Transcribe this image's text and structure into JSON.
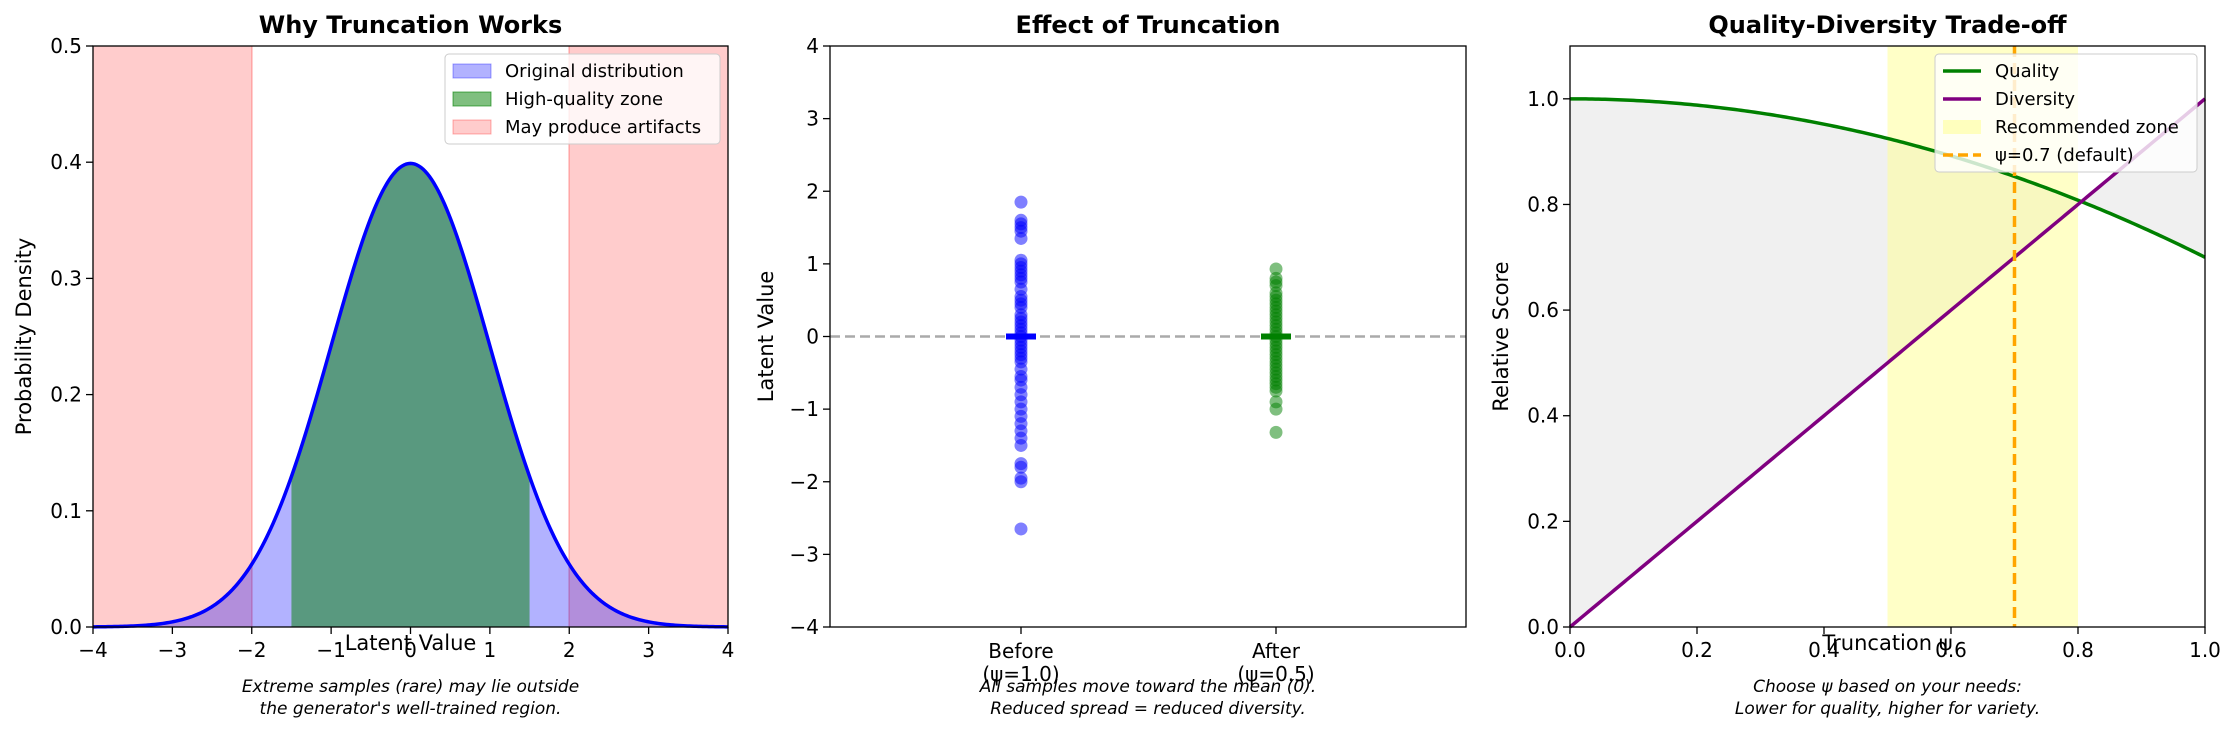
{
  "chart_data": [
    {
      "type": "area",
      "title": "Why Truncation Works",
      "xlabel": "Latent Value",
      "ylabel": "Probability Density",
      "xlim": [
        -4,
        4
      ],
      "ylim": [
        0,
        0.5
      ],
      "xticks": [
        "−4",
        "−3",
        "−2",
        "−1",
        "0",
        "1",
        "2",
        "3",
        "4"
      ],
      "yticks": [
        "0.0",
        "0.1",
        "0.2",
        "0.3",
        "0.4",
        "0.5"
      ],
      "series": [
        {
          "name": "Original distribution",
          "kind": "area",
          "color": "#0000ff",
          "x_range": [
            -4,
            4
          ],
          "function": "standard normal pdf"
        },
        {
          "name": "High-quality zone",
          "kind": "area",
          "color": "#008000",
          "x_range": [
            -1.5,
            1.5
          ]
        },
        {
          "name": "May produce artifacts",
          "kind": "band",
          "color": "#ff0000",
          "x_ranges": [
            [
              -4,
              -2
            ],
            [
              2,
              4
            ]
          ]
        }
      ],
      "legend_position": "top-right",
      "caption": [
        "Extreme samples (rare) may lie outside",
        "the generator's well-trained region."
      ]
    },
    {
      "type": "scatter",
      "title": "Effect of Truncation",
      "ylabel": "Latent Value",
      "ylim": [
        -4,
        4
      ],
      "yticks": [
        "−4",
        "−3",
        "−2",
        "−1",
        "0",
        "1",
        "2",
        "3",
        "4"
      ],
      "categories": [
        [
          "Before",
          "(ψ=1.0)"
        ],
        [
          "After",
          "(ψ=0.5)"
        ]
      ],
      "series": [
        {
          "name": "Before",
          "color": "#0000ff",
          "mean": 0,
          "values": [
            1.85,
            1.6,
            1.55,
            1.5,
            1.45,
            1.35,
            1.05,
            1.0,
            0.95,
            0.9,
            0.85,
            0.8,
            0.75,
            0.65,
            0.55,
            0.5,
            0.45,
            0.4,
            0.3,
            0.25,
            0.2,
            0.15,
            0.1,
            0.05,
            0.0,
            -0.05,
            -0.1,
            -0.15,
            -0.2,
            -0.25,
            -0.3,
            -0.35,
            -0.45,
            -0.55,
            -0.6,
            -0.7,
            -0.8,
            -0.9,
            -1.0,
            -1.1,
            -1.2,
            -1.3,
            -1.4,
            -1.5,
            -1.75,
            -1.8,
            -1.95,
            -2.0,
            -2.65
          ]
        },
        {
          "name": "After",
          "color": "#008000",
          "mean": 0,
          "values": [
            0.93,
            0.8,
            0.75,
            0.7,
            0.6,
            0.55,
            0.5,
            0.45,
            0.4,
            0.35,
            0.3,
            0.25,
            0.2,
            0.15,
            0.1,
            0.05,
            0.0,
            -0.05,
            -0.1,
            -0.15,
            -0.2,
            -0.25,
            -0.3,
            -0.35,
            -0.4,
            -0.45,
            -0.5,
            -0.55,
            -0.6,
            -0.65,
            -0.7,
            -0.75,
            -0.9,
            -1.0,
            -1.32
          ]
        }
      ],
      "reference_line": {
        "y": 0,
        "style": "dashed",
        "color": "#aaaaaa"
      },
      "caption": [
        "All samples move toward the mean (0).",
        "Reduced spread = reduced diversity."
      ]
    },
    {
      "type": "line",
      "title": "Quality-Diversity Trade-off",
      "xlabel": "Truncation ψ",
      "ylabel": "Relative Score",
      "xlim": [
        0,
        1
      ],
      "ylim": [
        0,
        1.1
      ],
      "xticks": [
        "0.0",
        "0.2",
        "0.4",
        "0.6",
        "0.8",
        "1.0"
      ],
      "yticks": [
        "0.0",
        "0.2",
        "0.4",
        "0.6",
        "0.8",
        "1.0"
      ],
      "x": [
        0.0,
        0.1,
        0.2,
        0.3,
        0.4,
        0.5,
        0.6,
        0.7,
        0.8,
        0.9,
        1.0
      ],
      "series": [
        {
          "name": "Quality",
          "color": "#008000",
          "values": [
            1.0,
            0.997,
            0.988,
            0.973,
            0.952,
            0.925,
            0.892,
            0.853,
            0.808,
            0.757,
            0.7
          ]
        },
        {
          "name": "Diversity",
          "color": "#800080",
          "values": [
            0.0,
            0.1,
            0.2,
            0.3,
            0.4,
            0.5,
            0.6,
            0.7,
            0.8,
            0.9,
            1.0
          ]
        }
      ],
      "bands": [
        {
          "name": "Recommended zone",
          "x_range": [
            0.5,
            0.8
          ],
          "color": "#ffff99"
        }
      ],
      "vlines": [
        {
          "name": "ψ=0.7 (default)",
          "x": 0.7,
          "color": "#ffa500",
          "style": "dashed"
        }
      ],
      "fill_between": {
        "color": "#d3d3d3"
      },
      "legend_position": "top-right",
      "caption": [
        "Choose ψ based on your needs:",
        "Lower for quality, higher for variety."
      ]
    }
  ]
}
